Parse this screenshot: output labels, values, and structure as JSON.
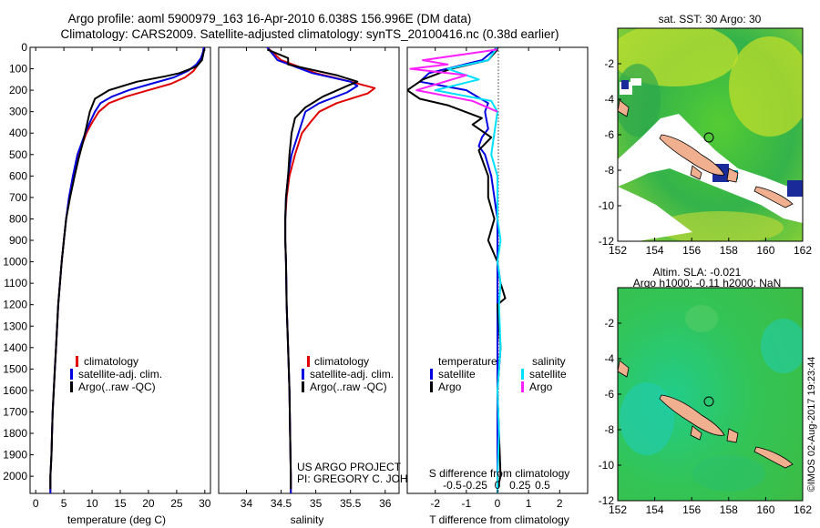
{
  "title_line1": "Argo profile: aoml 5900979_163 16-Apr-2010 6.038S 156.996E (DM data)",
  "title_line2": "Climatology: CARS2009. Satellite-adjusted climatology: synTS_20100416.nc (0.38d earlier)",
  "credit": "©IMOS 02-Aug-2017 19:23:44",
  "chart_data": [
    {
      "type": "line",
      "id": "temperature",
      "xlabel": "temperature (deg C)",
      "ylabel": "",
      "xlim": [
        -1,
        31
      ],
      "ylim": [
        2080,
        0
      ],
      "xticks": [
        "0",
        "5",
        "10",
        "15",
        "20",
        "25",
        "30"
      ],
      "yticks": [
        "0",
        "100",
        "200",
        "300",
        "400",
        "500",
        "600",
        "700",
        "800",
        "900",
        "1000",
        "1100",
        "1200",
        "1300",
        "1400",
        "1500",
        "1600",
        "1700",
        "1800",
        "1900",
        "2000"
      ],
      "legend": [
        "climatology",
        "satellite-adj. clim.",
        "Argo(..raw -QC)"
      ],
      "series": [
        {
          "name": "climatology",
          "color": "#e00000",
          "points": [
            [
              29.8,
              0
            ],
            [
              29.7,
              20
            ],
            [
              29.4,
              50
            ],
            [
              28.8,
              80
            ],
            [
              28,
              110
            ],
            [
              26.5,
              140
            ],
            [
              24,
              170
            ],
            [
              20,
              200
            ],
            [
              16,
              230
            ],
            [
              13,
              260
            ],
            [
              11.2,
              300
            ],
            [
              10,
              350
            ],
            [
              9,
              400
            ],
            [
              8.3,
              450
            ],
            [
              7.6,
              500
            ],
            [
              6.8,
              600
            ],
            [
              6,
              700
            ],
            [
              5.4,
              800
            ],
            [
              5,
              900
            ],
            [
              4.6,
              1000
            ],
            [
              4.3,
              1100
            ],
            [
              4,
              1200
            ],
            [
              3.8,
              1300
            ],
            [
              3.6,
              1400
            ],
            [
              3.4,
              1500
            ],
            [
              3.2,
              1600
            ],
            [
              3,
              1700
            ],
            [
              2.9,
              1800
            ],
            [
              2.8,
              1900
            ],
            [
              2.6,
              2000
            ],
            [
              2.6,
              2080
            ]
          ]
        },
        {
          "name": "satellite-adj. clim.",
          "color": "#0000e0",
          "points": [
            [
              29.8,
              0
            ],
            [
              29.7,
              20
            ],
            [
              29.3,
              50
            ],
            [
              28.5,
              80
            ],
            [
              27,
              110
            ],
            [
              24.5,
              140
            ],
            [
              20.5,
              170
            ],
            [
              16.5,
              200
            ],
            [
              13.5,
              230
            ],
            [
              11.5,
              260
            ],
            [
              10.5,
              300
            ],
            [
              9.6,
              350
            ],
            [
              8.8,
              400
            ],
            [
              8.1,
              450
            ],
            [
              7.4,
              500
            ],
            [
              6.6,
              600
            ],
            [
              5.9,
              700
            ],
            [
              5.4,
              800
            ],
            [
              5,
              900
            ],
            [
              4.6,
              1000
            ],
            [
              4.3,
              1100
            ],
            [
              4,
              1200
            ],
            [
              3.8,
              1300
            ],
            [
              3.6,
              1400
            ],
            [
              3.4,
              1500
            ],
            [
              3.2,
              1600
            ],
            [
              3,
              1700
            ],
            [
              2.9,
              1800
            ],
            [
              2.8,
              1900
            ],
            [
              2.6,
              2000
            ],
            [
              2.6,
              2080
            ]
          ]
        },
        {
          "name": "Argo(..raw -QC)",
          "color": "#000000",
          "points": [
            [
              29.9,
              10
            ],
            [
              29.5,
              60
            ],
            [
              28.5,
              90
            ],
            [
              25.5,
              120
            ],
            [
              23,
              135
            ],
            [
              18,
              160
            ],
            [
              13,
              200
            ],
            [
              10.5,
              240
            ],
            [
              9.6,
              300
            ],
            [
              9,
              370
            ],
            [
              8.4,
              440
            ],
            [
              7.6,
              520
            ],
            [
              6.9,
              600
            ],
            [
              6.1,
              700
            ],
            [
              5.4,
              800
            ],
            [
              5,
              900
            ],
            [
              4.6,
              1000
            ],
            [
              4.3,
              1100
            ],
            [
              4,
              1200
            ],
            [
              3.8,
              1300
            ],
            [
              3.6,
              1400
            ],
            [
              3.4,
              1500
            ],
            [
              3.2,
              1600
            ],
            [
              3,
              1700
            ],
            [
              2.9,
              1800
            ],
            [
              2.8,
              1900
            ],
            [
              2.6,
              2000
            ],
            [
              2.6,
              2060
            ]
          ]
        }
      ]
    },
    {
      "type": "line",
      "id": "salinity",
      "xlabel": "salinity",
      "xlim": [
        33.6,
        36.2
      ],
      "ylim": [
        2080,
        0
      ],
      "xticks": [
        "34",
        "34.5",
        "35",
        "35.5",
        "36"
      ],
      "legend": [
        "climatology",
        "satellite-adj. clim.",
        "Argo(..raw -QC)"
      ],
      "annotation": [
        "US ARGO PROJECT",
        "PI: GREGORY C. JOHNSON"
      ],
      "series": [
        {
          "name": "climatology",
          "color": "#e00000",
          "points": [
            [
              34.3,
              0
            ],
            [
              34.5,
              60
            ],
            [
              35,
              120
            ],
            [
              35.5,
              160
            ],
            [
              35.85,
              190
            ],
            [
              35.75,
              215
            ],
            [
              35.3,
              260
            ],
            [
              35.05,
              300
            ],
            [
              34.92,
              350
            ],
            [
              34.8,
              400
            ],
            [
              34.7,
              500
            ],
            [
              34.62,
              600
            ],
            [
              34.58,
              700
            ],
            [
              34.56,
              800
            ],
            [
              34.56,
              900
            ],
            [
              34.57,
              1000
            ],
            [
              34.58,
              1200
            ],
            [
              34.6,
              1400
            ],
            [
              34.62,
              1600
            ],
            [
              34.63,
              1800
            ],
            [
              34.64,
              2000
            ],
            [
              34.64,
              2080
            ]
          ]
        },
        {
          "name": "satellite-adj. clim.",
          "color": "#0000e0",
          "points": [
            [
              34.3,
              0
            ],
            [
              34.45,
              60
            ],
            [
              34.95,
              120
            ],
            [
              35.5,
              160
            ],
            [
              35.6,
              180
            ],
            [
              35.45,
              210
            ],
            [
              35.05,
              260
            ],
            [
              34.85,
              300
            ],
            [
              34.75,
              400
            ],
            [
              34.65,
              500
            ],
            [
              34.6,
              600
            ],
            [
              34.57,
              700
            ],
            [
              34.56,
              800
            ],
            [
              34.56,
              900
            ],
            [
              34.57,
              1000
            ],
            [
              34.58,
              1200
            ],
            [
              34.6,
              1400
            ],
            [
              34.62,
              1600
            ],
            [
              34.63,
              1800
            ],
            [
              34.64,
              2000
            ],
            [
              34.64,
              2080
            ]
          ]
        },
        {
          "name": "Argo(..raw -QC)",
          "color": "#000000",
          "points": [
            [
              34.3,
              10
            ],
            [
              34.6,
              50
            ],
            [
              34.6,
              80
            ],
            [
              35.3,
              130
            ],
            [
              35.6,
              160
            ],
            [
              35.45,
              180
            ],
            [
              35.1,
              230
            ],
            [
              34.85,
              280
            ],
            [
              34.7,
              330
            ],
            [
              34.65,
              400
            ],
            [
              34.62,
              500
            ],
            [
              34.6,
              600
            ],
            [
              34.57,
              700
            ],
            [
              34.56,
              800
            ],
            [
              34.56,
              900
            ],
            [
              34.57,
              1000
            ],
            [
              34.58,
              1200
            ],
            [
              34.6,
              1400
            ],
            [
              34.62,
              1600
            ],
            [
              34.63,
              1800
            ],
            [
              34.64,
              2000
            ],
            [
              34.64,
              2060
            ]
          ]
        }
      ]
    },
    {
      "type": "line",
      "id": "difference",
      "xlabel": "T difference from climatology",
      "xlabel2": "S difference from climatology",
      "xlim": [
        -2.9,
        2.9
      ],
      "ylim": [
        2080,
        0
      ],
      "xticks": [
        "-2",
        "-1",
        "0",
        "1",
        "2"
      ],
      "xticks_S": [
        "-0.5",
        "-0.25",
        "0",
        "0.25",
        "0.5"
      ],
      "legend_title_T": "temperature",
      "legend_title_S": "salinity",
      "legend": [
        "satellite",
        "Argo",
        "satellite",
        "Argo"
      ],
      "series": [
        {
          "name": "satellite",
          "color": "#0000e0",
          "points": [
            [
              0,
              0
            ],
            [
              -0.5,
              60
            ],
            [
              -2.2,
              120
            ],
            [
              -2.5,
              160
            ],
            [
              -1,
              200
            ],
            [
              -0.3,
              260
            ],
            [
              -0.4,
              300
            ],
            [
              -0.3,
              380
            ],
            [
              -0.5,
              420
            ],
            [
              -0.6,
              460
            ],
            [
              -0.4,
              500
            ],
            [
              -0.2,
              600
            ],
            [
              -0.1,
              700
            ],
            [
              0,
              800
            ],
            [
              0,
              1000
            ],
            [
              0,
              1200
            ],
            [
              0,
              1500
            ],
            [
              0,
              1800
            ],
            [
              0,
              2080
            ]
          ]
        },
        {
          "name": "Argo",
          "color": "#000000",
          "points": [
            [
              0,
              10
            ],
            [
              -0.3,
              60
            ],
            [
              -1.5,
              100
            ],
            [
              -2.4,
              150
            ],
            [
              -2.9,
              200
            ],
            [
              -2.5,
              240
            ],
            [
              -1.6,
              270
            ],
            [
              -0.5,
              330
            ],
            [
              -0.8,
              360
            ],
            [
              -0.2,
              420
            ],
            [
              -0.6,
              480
            ],
            [
              -0.5,
              520
            ],
            [
              -0.3,
              600
            ],
            [
              -0.3,
              700
            ],
            [
              -0.1,
              800
            ],
            [
              -0.3,
              900
            ],
            [
              0,
              1000
            ],
            [
              0.1,
              1100
            ],
            [
              0.25,
              1170
            ],
            [
              0,
              1200
            ],
            [
              0.1,
              1400
            ],
            [
              0,
              1600
            ],
            [
              0.05,
              1800
            ],
            [
              0.1,
              2000
            ],
            [
              0,
              2060
            ]
          ]
        },
        {
          "name": "satellite",
          "color": "#00e0ff",
          "points": [
            [
              0,
              0
            ],
            [
              -0.3,
              60
            ],
            [
              -1.6,
              100
            ],
            [
              -0.6,
              150
            ],
            [
              -2,
              200
            ],
            [
              -0.2,
              250
            ],
            [
              0,
              300
            ],
            [
              -0.1,
              400
            ],
            [
              -0.2,
              500
            ],
            [
              0,
              600
            ],
            [
              0,
              700
            ],
            [
              0,
              800
            ],
            [
              0.1,
              900
            ],
            [
              0,
              1000
            ],
            [
              0.1,
              1100
            ],
            [
              0.05,
              1200
            ],
            [
              0.1,
              1400
            ],
            [
              0,
              1600
            ],
            [
              0.05,
              1800
            ],
            [
              0,
              2000
            ],
            [
              0,
              2080
            ]
          ]
        },
        {
          "name": "Argo",
          "color": "#ff20ff",
          "points": [
            [
              0,
              10
            ],
            [
              -2.4,
              60
            ],
            [
              -1.6,
              80
            ],
            [
              -2.8,
              100
            ],
            [
              -1,
              130
            ],
            [
              -2.6,
              200
            ],
            [
              -0.8,
              250
            ],
            [
              0,
              300
            ]
          ]
        }
      ]
    },
    {
      "type": "heatmap",
      "id": "sst_map",
      "title": "sat. SST: 30 Argo: 30",
      "xlim": [
        152,
        162
      ],
      "ylim": [
        -12,
        0
      ],
      "xticks": [
        "152",
        "154",
        "156",
        "158",
        "160",
        "162"
      ],
      "yticks": [
        "-2",
        "-4",
        "-6",
        "-8",
        "-10",
        "-12"
      ],
      "marker": [
        156.996,
        -6.038
      ]
    },
    {
      "type": "heatmap",
      "id": "sla_map",
      "title_line1": "Altim. SLA: -0.021",
      "title_line2": "Argo h1000: -0.11 h2000: NaN",
      "xlim": [
        152,
        162
      ],
      "ylim": [
        -12,
        0
      ],
      "xticks": [
        "152",
        "154",
        "156",
        "158",
        "160",
        "162"
      ],
      "yticks": [
        "-2",
        "-4",
        "-6",
        "-8",
        "-10",
        "-12"
      ],
      "marker": [
        156.996,
        -6.038
      ]
    }
  ]
}
